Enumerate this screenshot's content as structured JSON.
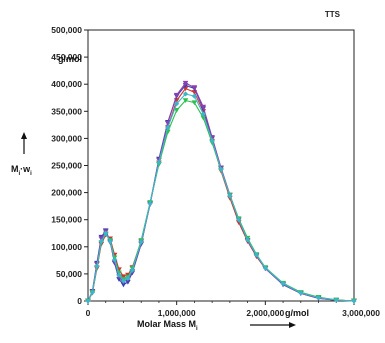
{
  "chart_data": {
    "type": "line",
    "title": "TTS",
    "xlabel": "Molar Mass M",
    "xlabel_subscript": "i",
    "xunit": "g/mol",
    "ylabel_main": "M",
    "ylabel_sub1": "i",
    "ylabel_dot": "·w",
    "ylabel_sub2": "i",
    "yunit": "g/mol",
    "xlim": [
      0,
      3000000
    ],
    "ylim": [
      0,
      500000
    ],
    "xticks": [
      "0",
      "1,000,000",
      "2,000,000",
      "3,000,000"
    ],
    "yticks": [
      "0",
      "50,000",
      "100,000",
      "150,000",
      "200,000",
      "250,000",
      "300,000",
      "350,000",
      "400,000",
      "450,000",
      "500,000"
    ],
    "grid": false,
    "series": [
      {
        "color": "#d0342c",
        "marker": "triangle-down",
        "x": [
          0,
          50000,
          100000,
          150000,
          200000,
          250000,
          300000,
          350000,
          400000,
          450000,
          500000,
          600000,
          700000,
          800000,
          900000,
          1000000,
          1100000,
          1200000,
          1300000,
          1400000,
          1500000,
          1600000,
          1700000,
          1800000,
          1900000,
          2000000,
          2200000,
          2400000,
          2600000,
          2800000,
          3000000
        ],
        "values": [
          0,
          15000,
          60000,
          105000,
          122000,
          115000,
          85000,
          58000,
          45000,
          48000,
          62000,
          110000,
          180000,
          255000,
          320000,
          370000,
          392000,
          385000,
          350000,
          295000,
          240000,
          190000,
          145000,
          110000,
          82000,
          60000,
          32000,
          15000,
          6000,
          2000,
          0
        ]
      },
      {
        "color": "#3b3fb3",
        "marker": "triangle-down",
        "x": [
          0,
          50000,
          100000,
          150000,
          200000,
          250000,
          300000,
          350000,
          400000,
          450000,
          500000,
          600000,
          700000,
          800000,
          900000,
          1000000,
          1100000,
          1200000,
          1300000,
          1400000,
          1500000,
          1600000,
          1700000,
          1800000,
          1900000,
          2000000,
          2200000,
          2400000,
          2600000,
          2800000,
          3000000
        ],
        "values": [
          0,
          18000,
          70000,
          118000,
          130000,
          110000,
          70000,
          40000,
          30000,
          35000,
          52000,
          105000,
          180000,
          262000,
          330000,
          378000,
          398000,
          392000,
          355000,
          300000,
          245000,
          195000,
          150000,
          112000,
          84000,
          60000,
          30000,
          14000,
          5000,
          1500,
          0
        ]
      },
      {
        "color": "#8c3fb0",
        "marker": "triangle-down",
        "x": [
          0,
          50000,
          100000,
          150000,
          200000,
          250000,
          300000,
          350000,
          400000,
          450000,
          500000,
          600000,
          700000,
          800000,
          900000,
          1000000,
          1100000,
          1200000,
          1300000,
          1400000,
          1500000,
          1600000,
          1700000,
          1800000,
          1900000,
          2000000,
          2200000,
          2400000,
          2600000,
          2800000,
          3000000
        ],
        "values": [
          0,
          17000,
          68000,
          115000,
          128000,
          108000,
          72000,
          45000,
          35000,
          40000,
          55000,
          107000,
          178000,
          260000,
          328000,
          380000,
          402000,
          394000,
          358000,
          302000,
          246000,
          196000,
          150000,
          112000,
          84000,
          60000,
          31000,
          14000,
          5000,
          1500,
          0
        ]
      },
      {
        "color": "#2fbf4f",
        "marker": "triangle-down",
        "x": [
          0,
          50000,
          100000,
          150000,
          200000,
          250000,
          300000,
          350000,
          400000,
          450000,
          500000,
          600000,
          700000,
          800000,
          900000,
          1000000,
          1100000,
          1200000,
          1300000,
          1400000,
          1500000,
          1600000,
          1700000,
          1800000,
          1900000,
          2000000,
          2200000,
          2400000,
          2600000,
          2800000,
          3000000
        ],
        "values": [
          0,
          16000,
          62000,
          108000,
          124000,
          112000,
          80000,
          52000,
          40000,
          44000,
          60000,
          112000,
          182000,
          252000,
          312000,
          352000,
          370000,
          366000,
          338000,
          292000,
          242000,
          195000,
          152000,
          116000,
          86000,
          62000,
          33000,
          16000,
          7000,
          2000,
          0
        ]
      },
      {
        "color": "#3bb6c9",
        "marker": "diamond",
        "x": [
          0,
          50000,
          100000,
          150000,
          200000,
          250000,
          300000,
          350000,
          400000,
          450000,
          500000,
          600000,
          700000,
          800000,
          900000,
          1000000,
          1100000,
          1200000,
          1300000,
          1400000,
          1500000,
          1600000,
          1700000,
          1800000,
          1900000,
          2000000,
          2200000,
          2400000,
          2600000,
          2800000,
          3000000
        ],
        "values": [
          0,
          16000,
          64000,
          110000,
          125000,
          110000,
          76000,
          48000,
          37000,
          42000,
          57000,
          109000,
          180000,
          256000,
          320000,
          364000,
          382000,
          378000,
          345000,
          296000,
          243000,
          194000,
          150000,
          113000,
          85000,
          61000,
          32000,
          15000,
          6000,
          1800,
          0
        ]
      }
    ]
  }
}
